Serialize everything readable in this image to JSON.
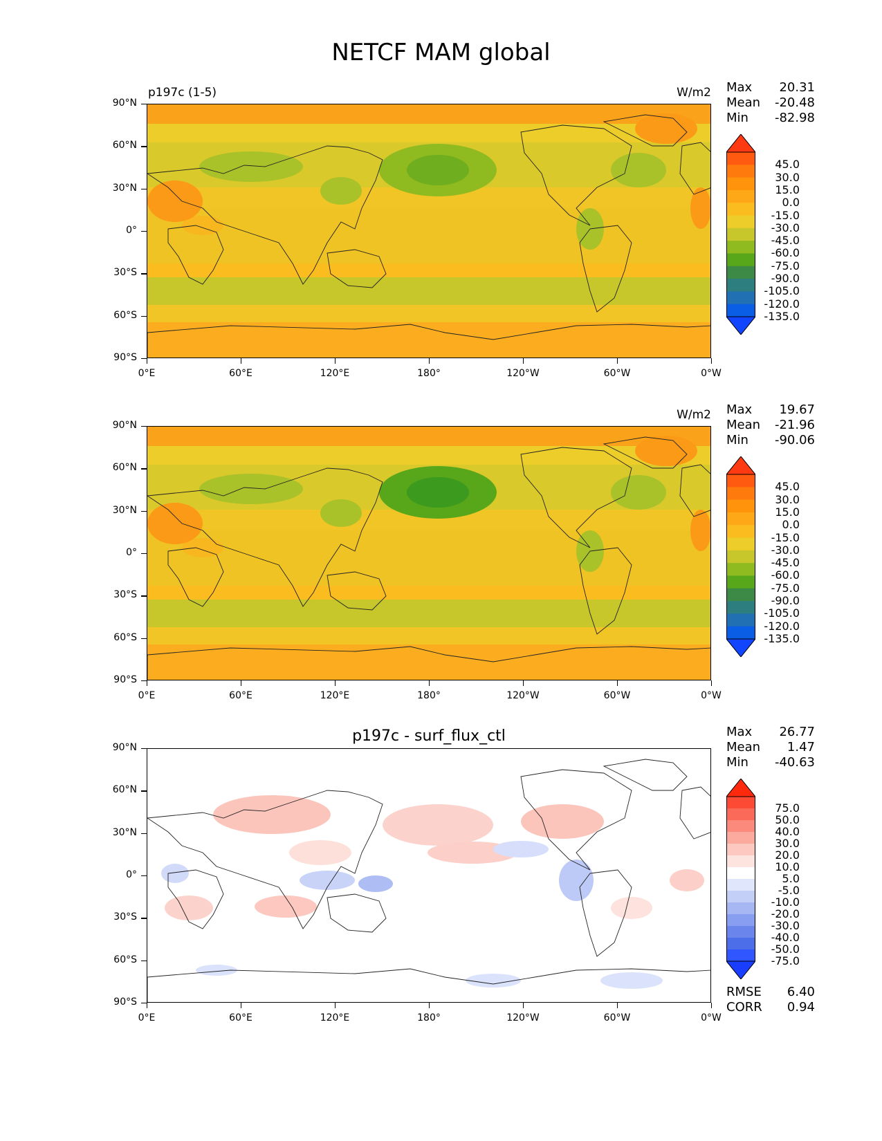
{
  "title": "NETCF MAM global",
  "lon_ticks": [
    "0°E",
    "60°E",
    "120°E",
    "180°",
    "120°W",
    "60°W",
    "0°W"
  ],
  "lat_ticks": [
    "90°N",
    "60°N",
    "30°N",
    "0°",
    "30°S",
    "60°S",
    "90°S"
  ],
  "panels": [
    {
      "left_label": "p197c (1-5)",
      "center_title": "",
      "units": "W/m2",
      "stats": {
        "max_label": "Max",
        "max": "20.31",
        "mean_label": "Mean",
        "mean": "-20.48",
        "min_label": "Min",
        "min": "-82.98"
      },
      "colorbar": {
        "labels": [
          "45.0",
          "30.0",
          "15.0",
          "0.0",
          "-15.0",
          "-30.0",
          "-45.0",
          "-60.0",
          "-75.0",
          "-90.0",
          "-105.0",
          "-120.0",
          "-135.0"
        ],
        "colors": [
          "#ff3a12",
          "#ff5a0f",
          "#ff7a0c",
          "#ff930b",
          "#ffa817",
          "#fbbc1f",
          "#eccd2a",
          "#c7c62a",
          "#8fbb20",
          "#58a619",
          "#3c8a46",
          "#2c7f7e",
          "#2170b4",
          "#0a5ee6",
          "#1245ff"
        ]
      }
    },
    {
      "left_label": "",
      "center_title": "",
      "units": "W/m2",
      "stats": {
        "max_label": "Max",
        "max": "19.67",
        "mean_label": "Mean",
        "mean": "-21.96",
        "min_label": "Min",
        "min": "-90.06"
      },
      "colorbar": {
        "labels": [
          "45.0",
          "30.0",
          "15.0",
          "0.0",
          "-15.0",
          "-30.0",
          "-45.0",
          "-60.0",
          "-75.0",
          "-90.0",
          "-105.0",
          "-120.0",
          "-135.0"
        ],
        "colors": [
          "#ff3a12",
          "#ff5a0f",
          "#ff7a0c",
          "#ff930b",
          "#ffa817",
          "#fbbc1f",
          "#eccd2a",
          "#c7c62a",
          "#8fbb20",
          "#58a619",
          "#3c8a46",
          "#2c7f7e",
          "#2170b4",
          "#0a5ee6",
          "#1245ff"
        ]
      }
    },
    {
      "left_label": "",
      "center_title": "p197c - surf_flux_ctl",
      "units": "",
      "stats": {
        "max_label": "Max",
        "max": "26.77",
        "mean_label": "Mean",
        "mean": "1.47",
        "min_label": "Min",
        "min": "-40.63"
      },
      "colorbar": {
        "labels": [
          "75.0",
          "50.0",
          "40.0",
          "30.0",
          "20.0",
          "10.0",
          "5.0",
          "-5.0",
          "-10.0",
          "-20.0",
          "-30.0",
          "-40.0",
          "-50.0",
          "-75.0"
        ],
        "colors": [
          "#ff2a0e",
          "#fd4a34",
          "#fb6a58",
          "#fb8a7c",
          "#fca99e",
          "#fdc8c0",
          "#fee4df",
          "#ffffff",
          "#e0e6fb",
          "#c4cff7",
          "#a6b7f3",
          "#889ef0",
          "#6a86ec",
          "#4d6ee9",
          "#2f56ff",
          "#1a3eff"
        ]
      },
      "bottom_stats": {
        "rmse_label": "RMSE",
        "rmse": "6.40",
        "corr_label": "CORR",
        "corr": "0.94"
      }
    }
  ]
}
